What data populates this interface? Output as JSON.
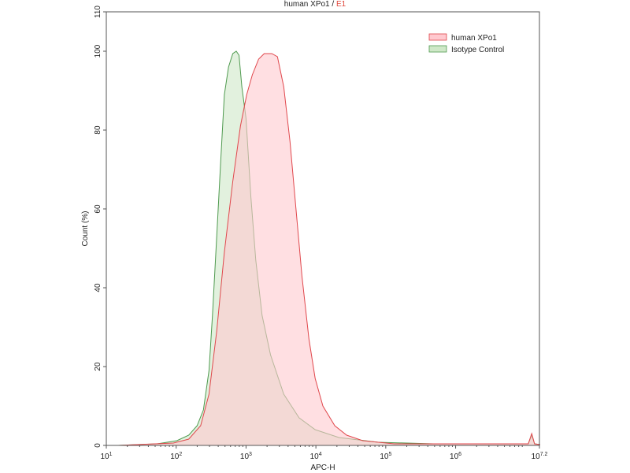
{
  "chart_data": {
    "type": "area",
    "title": "human XPo1",
    "title_suffix": "E1",
    "title_separator": " / ",
    "xlabel": "APC-H",
    "ylabel": "Count (%)",
    "x_scale": "log10",
    "xlim": [
      1,
      7.2
    ],
    "ylim": [
      0,
      110
    ],
    "x_ticks": [
      {
        "base": "10",
        "exp": "1",
        "value": 1
      },
      {
        "base": "10",
        "exp": "2",
        "value": 2
      },
      {
        "base": "10",
        "exp": "3",
        "value": 3
      },
      {
        "base": "10",
        "exp": "4",
        "value": 4
      },
      {
        "base": "10",
        "exp": "5",
        "value": 5
      },
      {
        "base": "10",
        "exp": "6",
        "value": 6
      },
      {
        "base": "10",
        "exp": "7.2",
        "value": 7.2
      }
    ],
    "y_ticks": [
      0,
      20,
      40,
      60,
      80,
      100,
      110
    ],
    "grid": false,
    "legend_position": "top-right",
    "series": [
      {
        "name": "human XPo1",
        "line_color": "#e0474c",
        "fill_color": "#ffc9cf",
        "x_log10": [
          1.17,
          1.96,
          2.18,
          2.35,
          2.47,
          2.58,
          2.69,
          2.81,
          2.92,
          3.01,
          3.09,
          3.18,
          3.26,
          3.37,
          3.45,
          3.54,
          3.63,
          3.71,
          3.8,
          3.9,
          3.99,
          4.1,
          4.27,
          4.44,
          4.67,
          5.12,
          7.04,
          7.09,
          7.13,
          7.21
        ],
        "y": [
          0,
          0.6,
          1.6,
          5,
          13,
          29,
          49,
          67,
          81,
          89,
          94,
          98,
          99.4,
          99.4,
          98.6,
          91,
          77,
          61,
          43,
          27,
          17,
          10,
          5,
          2.6,
          1.2,
          0.4,
          0.4,
          3,
          0.4,
          0.2
        ]
      },
      {
        "name": "Isotype Control",
        "line_color": "#4f9a4f",
        "fill_color": "#cfe8c8",
        "x_log10": [
          1.17,
          1.73,
          2.01,
          2.18,
          2.3,
          2.39,
          2.47,
          2.52,
          2.58,
          2.64,
          2.69,
          2.75,
          2.81,
          2.86,
          2.9,
          2.94,
          3.0,
          3.07,
          3.14,
          3.23,
          3.35,
          3.54,
          3.76,
          3.99,
          4.33,
          4.89,
          5.68,
          7.04,
          7.09,
          7.13,
          7.21
        ],
        "y": [
          0,
          0.4,
          1.2,
          2.6,
          5,
          9,
          19,
          33,
          53,
          73,
          89,
          96,
          99.4,
          100,
          99,
          91,
          83,
          63,
          47,
          33,
          23,
          13,
          7,
          4,
          2,
          0.8,
          0.4,
          0.4,
          2.6,
          0.4,
          0.2
        ]
      }
    ]
  }
}
